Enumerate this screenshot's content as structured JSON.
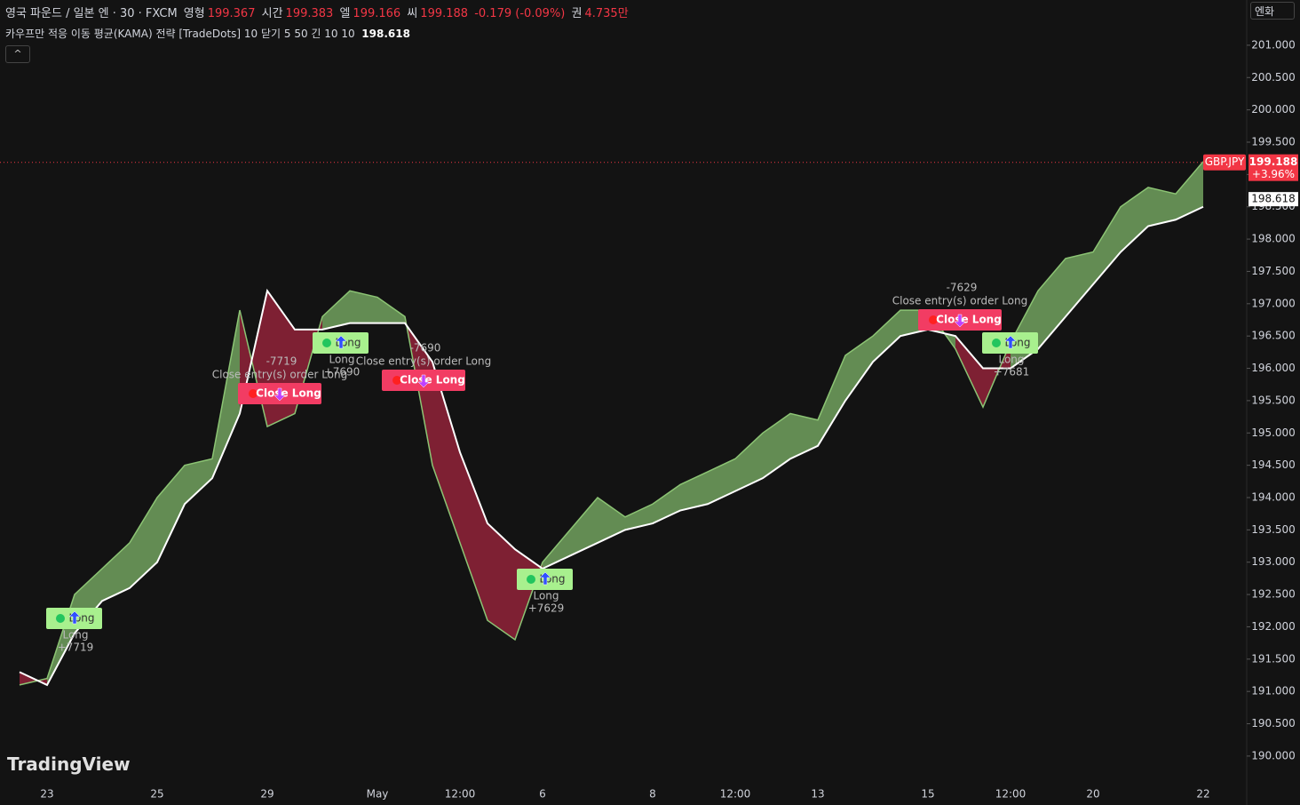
{
  "header": {
    "symbol": "영국 파운드 / 일본 엔 · 30 · FXCM",
    "ohlc": [
      {
        "label": "영형",
        "value": 199.367
      },
      {
        "label": "시간",
        "value": 199.383
      },
      {
        "label": "엘",
        "value": 199.166
      },
      {
        "label": "씨",
        "value": 199.188
      }
    ],
    "change": "-0.179 (-0.09%)",
    "volume_label": "권",
    "volume": "4.735만",
    "strategy": "카우프만 적응 이동 평균(KAMA) 전략 [TradeDots] 10 닫기 5 50 긴 10 10",
    "strategy_value": 198.618,
    "currency_button": "엔화",
    "watermark": "TradingView"
  },
  "chart_data": {
    "type": "line",
    "categories": [
      null,
      "23",
      null,
      null,
      null,
      "25",
      null,
      null,
      null,
      "29",
      null,
      null,
      null,
      "May",
      null,
      null,
      "12:00",
      null,
      null,
      "6",
      null,
      null,
      null,
      "8",
      null,
      null,
      "12:00",
      null,
      null,
      "13",
      null,
      null,
      null,
      "15",
      null,
      null,
      "12:00",
      null,
      null,
      "20",
      null,
      null,
      null,
      "22"
    ],
    "series": [
      {
        "color": "#8cc474",
        "values": [
          191.1,
          191.2,
          192.5,
          192.9,
          193.3,
          194.0,
          194.5,
          194.6,
          196.9,
          195.1,
          195.3,
          196.8,
          197.2,
          197.1,
          196.8,
          194.5,
          193.3,
          192.1,
          191.8,
          193.0,
          193.5,
          194.0,
          193.7,
          193.9,
          194.2,
          194.4,
          194.6,
          195.0,
          195.3,
          195.2,
          196.2,
          196.5,
          196.9,
          196.9,
          196.3,
          195.4,
          196.4,
          197.2,
          197.7,
          197.8,
          198.5,
          198.8,
          198.7,
          199.2
        ]
      },
      {
        "color": "#ffffff",
        "values": [
          191.3,
          191.1,
          191.9,
          192.4,
          192.6,
          193.0,
          193.9,
          194.3,
          195.3,
          197.2,
          196.6,
          196.6,
          196.7,
          196.7,
          196.7,
          196.1,
          194.7,
          193.6,
          193.2,
          192.9,
          193.1,
          193.3,
          193.5,
          193.6,
          193.8,
          193.9,
          194.1,
          194.3,
          194.6,
          194.8,
          195.5,
          196.1,
          196.5,
          196.6,
          196.5,
          196.0,
          196.0,
          196.3,
          196.8,
          197.3,
          197.8,
          198.2,
          198.3,
          198.5
        ]
      }
    ],
    "fill_up": "#7fb56a",
    "fill_down": "#a3263f",
    "ylim": [
      189.6,
      201.7
    ],
    "yticks": [
      {
        "value": 190,
        "label": "190.000"
      },
      {
        "value": 190.5,
        "label": "190.500"
      },
      {
        "value": 191,
        "label": "191.000"
      },
      {
        "value": 191.5,
        "label": "191.500"
      },
      {
        "value": 192,
        "label": "192.000"
      },
      {
        "value": 192.5,
        "label": "192.500"
      },
      {
        "value": 193,
        "label": "193.000"
      },
      {
        "value": 193.5,
        "label": "193.500"
      },
      {
        "value": 194,
        "label": "194.000"
      },
      {
        "value": 194.5,
        "label": "194.500"
      },
      {
        "value": 195,
        "label": "195.000"
      },
      {
        "value": 195.5,
        "label": "195.500"
      },
      {
        "value": 196,
        "label": "196.000"
      },
      {
        "value": 196.5,
        "label": "196.500"
      },
      {
        "value": 197,
        "label": "197.000"
      },
      {
        "value": 197.5,
        "label": "197.500"
      },
      {
        "value": 198,
        "label": "198.000"
      },
      {
        "value": 198.5,
        "label": "198.500"
      },
      {
        "value": 199,
        "label": "199.000"
      },
      {
        "value": 199.5,
        "label": "199.500"
      },
      {
        "value": 200,
        "label": "200.000"
      },
      {
        "value": 200.5,
        "label": "200.500"
      },
      {
        "value": 201,
        "label": "201.000"
      }
    ],
    "last_price": {
      "symbol": "GBP.JPY",
      "value": 199.188,
      "change": "+3.96%",
      "color": "#f23645"
    },
    "kama_price": {
      "value": 198.618
    },
    "trades": [
      {
        "type": "entry",
        "box": "Long",
        "text": "Long",
        "profit": "+7719"
      },
      {
        "type": "exit",
        "box": "Close Long",
        "text": "Close entry(s) order Long",
        "profit": "-7719"
      },
      {
        "type": "entry",
        "box": "Long",
        "text": "Long",
        "profit": "+7690"
      },
      {
        "type": "exit",
        "box": "Close Long",
        "text": "Close entry(s) order Long",
        "profit": "-7690"
      },
      {
        "type": "entry",
        "box": "Long",
        "text": "Long",
        "profit": "+7629"
      },
      {
        "type": "exit",
        "box": "Close Long",
        "text": "Close entry(s) order Long",
        "profit": "-7629"
      },
      {
        "type": "entry",
        "box": "Long",
        "text": "Long",
        "profit": "+7681"
      }
    ]
  }
}
